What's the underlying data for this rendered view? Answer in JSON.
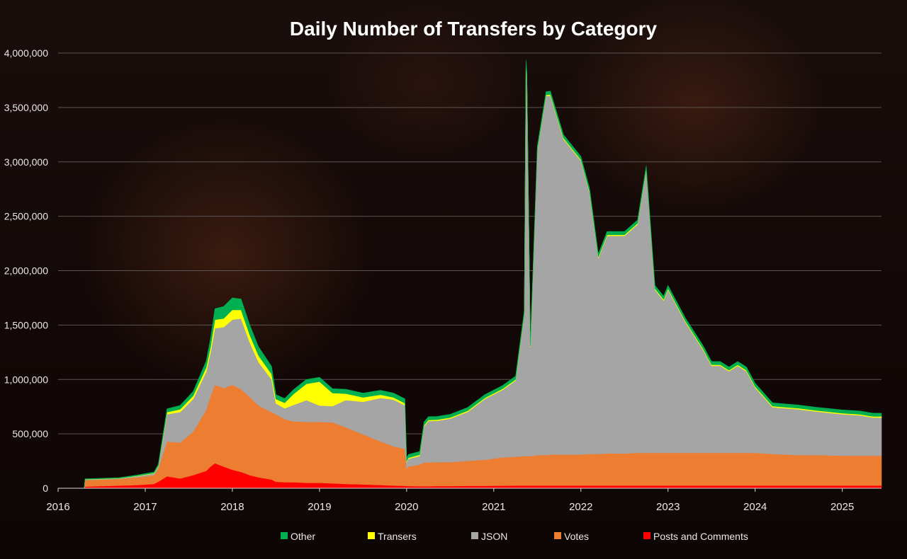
{
  "chart_data": {
    "type": "area",
    "title": "Daily Number of Transfers by Category",
    "xlabel": "",
    "ylabel": "",
    "xlim": [
      2016.0,
      2025.45
    ],
    "ylim": [
      0,
      4000000
    ],
    "y_ticks": [
      "0",
      "500,000",
      "1,000,000",
      "1,500,000",
      "2,000,000",
      "2,500,000",
      "3,000,000",
      "3,500,000",
      "4,000,000"
    ],
    "x_ticks": [
      "2016",
      "2017",
      "2018",
      "2019",
      "2020",
      "2021",
      "2022",
      "2023",
      "2024",
      "2025"
    ],
    "grid": true,
    "legend_position": "bottom",
    "x": [
      2016.0,
      2016.3,
      2016.31,
      2016.5,
      2016.7,
      2016.9,
      2017.1,
      2017.15,
      2017.25,
      2017.4,
      2017.55,
      2017.7,
      2017.75,
      2017.8,
      2017.9,
      2018.0,
      2018.1,
      2018.2,
      2018.3,
      2018.45,
      2018.5,
      2018.6,
      2018.7,
      2018.85,
      2019.0,
      2019.15,
      2019.3,
      2019.5,
      2019.7,
      2019.85,
      2019.98,
      2020.0,
      2020.02,
      2020.15,
      2020.2,
      2020.25,
      2020.35,
      2020.5,
      2020.7,
      2020.9,
      2021.1,
      2021.25,
      2021.35,
      2021.37,
      2021.38,
      2021.42,
      2021.5,
      2021.6,
      2021.65,
      2021.8,
      2021.9,
      2022.0,
      2022.1,
      2022.2,
      2022.3,
      2022.5,
      2022.65,
      2022.75,
      2022.85,
      2022.95,
      2023.0,
      2023.2,
      2023.4,
      2023.5,
      2023.6,
      2023.7,
      2023.8,
      2023.9,
      2024.0,
      2024.2,
      2024.5,
      2024.7,
      2025.0,
      2025.2,
      2025.35,
      2025.45
    ],
    "series": [
      {
        "name": "Posts and Comments",
        "color": "#ff0000",
        "values": [
          0,
          0,
          15000,
          20000,
          25000,
          30000,
          40000,
          60000,
          110000,
          90000,
          120000,
          160000,
          200000,
          230000,
          200000,
          170000,
          150000,
          120000,
          100000,
          80000,
          60000,
          55000,
          55000,
          50000,
          50000,
          45000,
          40000,
          35000,
          30000,
          25000,
          22000,
          20000,
          20000,
          18000,
          18000,
          18000,
          20000,
          20000,
          22000,
          22000,
          24000,
          25000,
          25000,
          25000,
          25000,
          25000,
          25000,
          25000,
          25000,
          25000,
          25000,
          25000,
          25000,
          25000,
          25000,
          25000,
          25000,
          25000,
          25000,
          25000,
          25000,
          25000,
          25000,
          25000,
          25000,
          25000,
          25000,
          25000,
          25000,
          25000,
          25000,
          25000,
          25000,
          25000,
          25000,
          25000
        ]
      },
      {
        "name": "Votes",
        "color": "#ed7d31",
        "values": [
          0,
          0,
          60000,
          60000,
          60000,
          70000,
          80000,
          120000,
          320000,
          330000,
          400000,
          560000,
          650000,
          720000,
          720000,
          780000,
          760000,
          720000,
          660000,
          620000,
          620000,
          580000,
          560000,
          560000,
          560000,
          560000,
          520000,
          460000,
          400000,
          360000,
          340000,
          160000,
          180000,
          200000,
          220000,
          220000,
          220000,
          220000,
          230000,
          240000,
          260000,
          265000,
          270000,
          270000,
          270000,
          270000,
          280000,
          280000,
          285000,
          285000,
          285000,
          285000,
          290000,
          290000,
          295000,
          295000,
          300000,
          300000,
          300000,
          300000,
          300000,
          300000,
          300000,
          300000,
          300000,
          300000,
          300000,
          300000,
          300000,
          290000,
          280000,
          280000,
          275000,
          275000,
          275000,
          275000
        ]
      },
      {
        "name": "JSON",
        "color": "#a5a5a5",
        "values": [
          0,
          0,
          5000,
          5000,
          5000,
          10000,
          15000,
          20000,
          250000,
          280000,
          300000,
          350000,
          400000,
          520000,
          560000,
          600000,
          650000,
          500000,
          400000,
          300000,
          100000,
          100000,
          150000,
          200000,
          150000,
          150000,
          250000,
          300000,
          400000,
          430000,
          400000,
          60000,
          70000,
          80000,
          330000,
          380000,
          380000,
          400000,
          450000,
          560000,
          620000,
          700000,
          1300000,
          3600000,
          3500000,
          1000000,
          2800000,
          3300000,
          3300000,
          2900000,
          2800000,
          2700000,
          2400000,
          1800000,
          2000000,
          2000000,
          2100000,
          2600000,
          1500000,
          1400000,
          1500000,
          1200000,
          950000,
          800000,
          800000,
          750000,
          800000,
          750000,
          600000,
          430000,
          420000,
          400000,
          380000,
          370000,
          350000,
          350000
        ]
      },
      {
        "name": "Transers",
        "color": "#ffff00",
        "values": [
          0,
          0,
          2000,
          2000,
          2000,
          3000,
          4000,
          5000,
          20000,
          25000,
          30000,
          40000,
          50000,
          80000,
          80000,
          90000,
          80000,
          70000,
          60000,
          50000,
          40000,
          50000,
          100000,
          150000,
          220000,
          120000,
          60000,
          40000,
          30000,
          20000,
          20000,
          10000,
          10000,
          10000,
          10000,
          10000,
          10000,
          10000,
          10000,
          10000,
          10000,
          10000,
          10000,
          10000,
          10000,
          10000,
          10000,
          10000,
          10000,
          10000,
          10000,
          10000,
          10000,
          10000,
          10000,
          10000,
          10000,
          10000,
          10000,
          10000,
          10000,
          10000,
          10000,
          10000,
          10000,
          10000,
          10000,
          10000,
          10000,
          10000,
          10000,
          10000,
          10000,
          10000,
          10000,
          10000
        ]
      },
      {
        "name": "Other",
        "color": "#00b050",
        "values": [
          0,
          0,
          5000,
          5000,
          5000,
          8000,
          10000,
          15000,
          30000,
          35000,
          40000,
          60000,
          80000,
          100000,
          110000,
          110000,
          100000,
          90000,
          80000,
          70000,
          40000,
          40000,
          40000,
          40000,
          40000,
          40000,
          40000,
          40000,
          40000,
          40000,
          40000,
          30000,
          30000,
          30000,
          30000,
          30000,
          30000,
          30000,
          30000,
          30000,
          30000,
          30000,
          30000,
          30000,
          30000,
          30000,
          30000,
          30000,
          30000,
          30000,
          30000,
          30000,
          30000,
          30000,
          30000,
          30000,
          30000,
          30000,
          30000,
          30000,
          30000,
          30000,
          30000,
          30000,
          30000,
          30000,
          30000,
          30000,
          30000,
          30000,
          30000,
          30000,
          30000,
          30000,
          30000,
          30000
        ]
      }
    ]
  },
  "legend": [
    {
      "label": "Other",
      "color": "#00b050"
    },
    {
      "label": "Transers",
      "color": "#ffff00"
    },
    {
      "label": "JSON",
      "color": "#a5a5a5"
    },
    {
      "label": "Votes",
      "color": "#ed7d31"
    },
    {
      "label": "Posts and Comments",
      "color": "#ff0000"
    }
  ]
}
